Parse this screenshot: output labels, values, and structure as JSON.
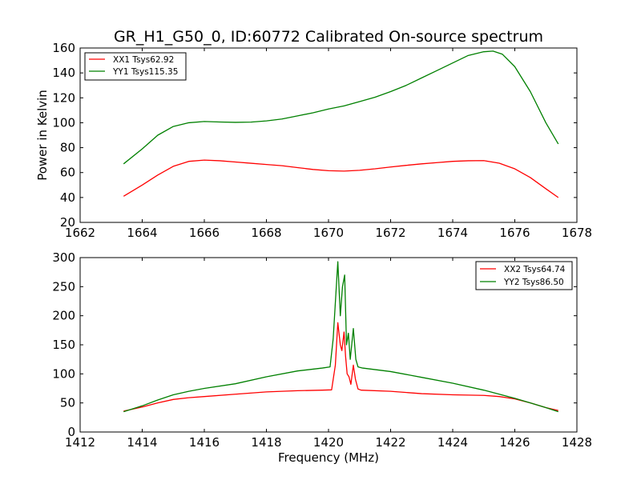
{
  "figure": {
    "title": "GR_H1_G50_0, ID:60772 Calibrated On-source spectrum",
    "xlabel": "Frequency (MHz)"
  },
  "colors": {
    "xx": "#ff0000",
    "yy": "#008000",
    "axes": "#000000",
    "background": "#ffffff"
  },
  "chart_data": [
    {
      "type": "line",
      "name": "top-panel",
      "title": "GR_H1_G50_0, ID:60772 Calibrated On-source spectrum",
      "xlabel": "",
      "ylabel": "Power in Kelvin",
      "xlim": [
        1662,
        1678
      ],
      "ylim": [
        20,
        160
      ],
      "xticks": [
        1662,
        1664,
        1666,
        1668,
        1670,
        1672,
        1674,
        1676,
        1678
      ],
      "yticks": [
        20,
        40,
        60,
        80,
        100,
        120,
        140,
        160
      ],
      "xticklabels": [
        "1662",
        "1664",
        "1666",
        "1668",
        "1670",
        "1672",
        "1674",
        "1676",
        "1678"
      ],
      "yticklabels": [
        "20",
        "40",
        "60",
        "80",
        "100",
        "120",
        "140",
        "160"
      ],
      "grid": false,
      "legend_position": "top-left",
      "series": [
        {
          "name": "XX1 Tsys62.92",
          "color": "#ff0000",
          "x": [
            1663.4,
            1664.0,
            1664.5,
            1665.0,
            1665.5,
            1666.0,
            1666.5,
            1667.0,
            1667.5,
            1668.0,
            1668.5,
            1669.0,
            1669.5,
            1670.0,
            1670.5,
            1671.0,
            1671.5,
            1672.0,
            1672.5,
            1673.0,
            1673.5,
            1674.0,
            1674.5,
            1675.0,
            1675.5,
            1676.0,
            1676.5,
            1677.0,
            1677.4
          ],
          "y": [
            41,
            50,
            58,
            65,
            69,
            70,
            69.5,
            68.5,
            67.5,
            66.5,
            65.5,
            64,
            62.5,
            61.5,
            61.2,
            61.8,
            63,
            64.5,
            65.8,
            67,
            68,
            69,
            69.5,
            69.6,
            67.5,
            63,
            56,
            47,
            40
          ]
        },
        {
          "name": "YY1 Tsys115.35",
          "color": "#008000",
          "x": [
            1663.4,
            1664.0,
            1664.5,
            1665.0,
            1665.5,
            1666.0,
            1666.5,
            1667.0,
            1667.5,
            1668.0,
            1668.5,
            1669.0,
            1669.5,
            1670.0,
            1670.5,
            1671.0,
            1671.5,
            1672.0,
            1672.5,
            1673.0,
            1673.5,
            1674.0,
            1674.5,
            1675.0,
            1675.3,
            1675.6,
            1676.0,
            1676.5,
            1677.0,
            1677.4
          ],
          "y": [
            67,
            79,
            90,
            97,
            100,
            101,
            100.6,
            100.3,
            100.5,
            101.5,
            103,
            105.5,
            108,
            111,
            113.5,
            117,
            120.5,
            125,
            130,
            136,
            142,
            148,
            154,
            157,
            157.5,
            155,
            145,
            125,
            100,
            83
          ]
        }
      ]
    },
    {
      "type": "line",
      "name": "bottom-panel",
      "title": "",
      "xlabel": "Frequency (MHz)",
      "ylabel": "",
      "xlim": [
        1412,
        1428
      ],
      "ylim": [
        0,
        300
      ],
      "xticks": [
        1412,
        1414,
        1416,
        1418,
        1420,
        1422,
        1424,
        1426,
        1428
      ],
      "yticks": [
        0,
        50,
        100,
        150,
        200,
        250,
        300
      ],
      "xticklabels": [
        "1412",
        "1414",
        "1416",
        "1418",
        "1420",
        "1422",
        "1424",
        "1426",
        "1428"
      ],
      "yticklabels": [
        "0",
        "50",
        "100",
        "150",
        "200",
        "250",
        "300"
      ],
      "grid": false,
      "legend_position": "top-right",
      "series": [
        {
          "name": "XX2 Tsys64.74",
          "color": "#ff0000",
          "x": [
            1413.4,
            1414.0,
            1414.5,
            1415.0,
            1415.5,
            1416.0,
            1417.0,
            1418.0,
            1419.0,
            1419.8,
            1420.1,
            1420.22,
            1420.3,
            1420.38,
            1420.43,
            1420.5,
            1420.55,
            1420.6,
            1420.66,
            1420.72,
            1420.8,
            1420.87,
            1420.95,
            1421.05,
            1422.0,
            1423.0,
            1424.0,
            1425.0,
            1425.5,
            1426.0,
            1426.5,
            1427.0,
            1427.4
          ],
          "y": [
            36,
            43,
            50,
            56,
            59,
            61,
            65,
            69,
            71,
            72,
            72.5,
            115,
            188,
            150,
            140,
            172,
            130,
            100,
            95,
            82,
            115,
            90,
            74,
            72,
            70,
            66,
            64,
            63,
            61,
            57,
            50,
            42,
            37
          ]
        },
        {
          "name": "YY2 Tsys86.50",
          "color": "#008000",
          "x": [
            1413.4,
            1414.0,
            1414.5,
            1415.0,
            1415.5,
            1416.0,
            1417.0,
            1418.0,
            1419.0,
            1419.8,
            1420.05,
            1420.15,
            1420.3,
            1420.38,
            1420.45,
            1420.52,
            1420.58,
            1420.64,
            1420.7,
            1420.8,
            1420.88,
            1420.95,
            1421.1,
            1422.0,
            1423.0,
            1424.0,
            1425.0,
            1425.5,
            1426.0,
            1426.5,
            1427.0,
            1427.4
          ],
          "y": [
            35,
            45,
            55,
            64,
            70,
            75,
            83,
            95,
            105,
            110,
            112,
            160,
            293,
            200,
            250,
            270,
            150,
            170,
            125,
            178,
            125,
            112,
            110,
            104,
            94,
            84,
            72,
            65,
            58,
            50,
            42,
            35
          ]
        }
      ]
    }
  ]
}
